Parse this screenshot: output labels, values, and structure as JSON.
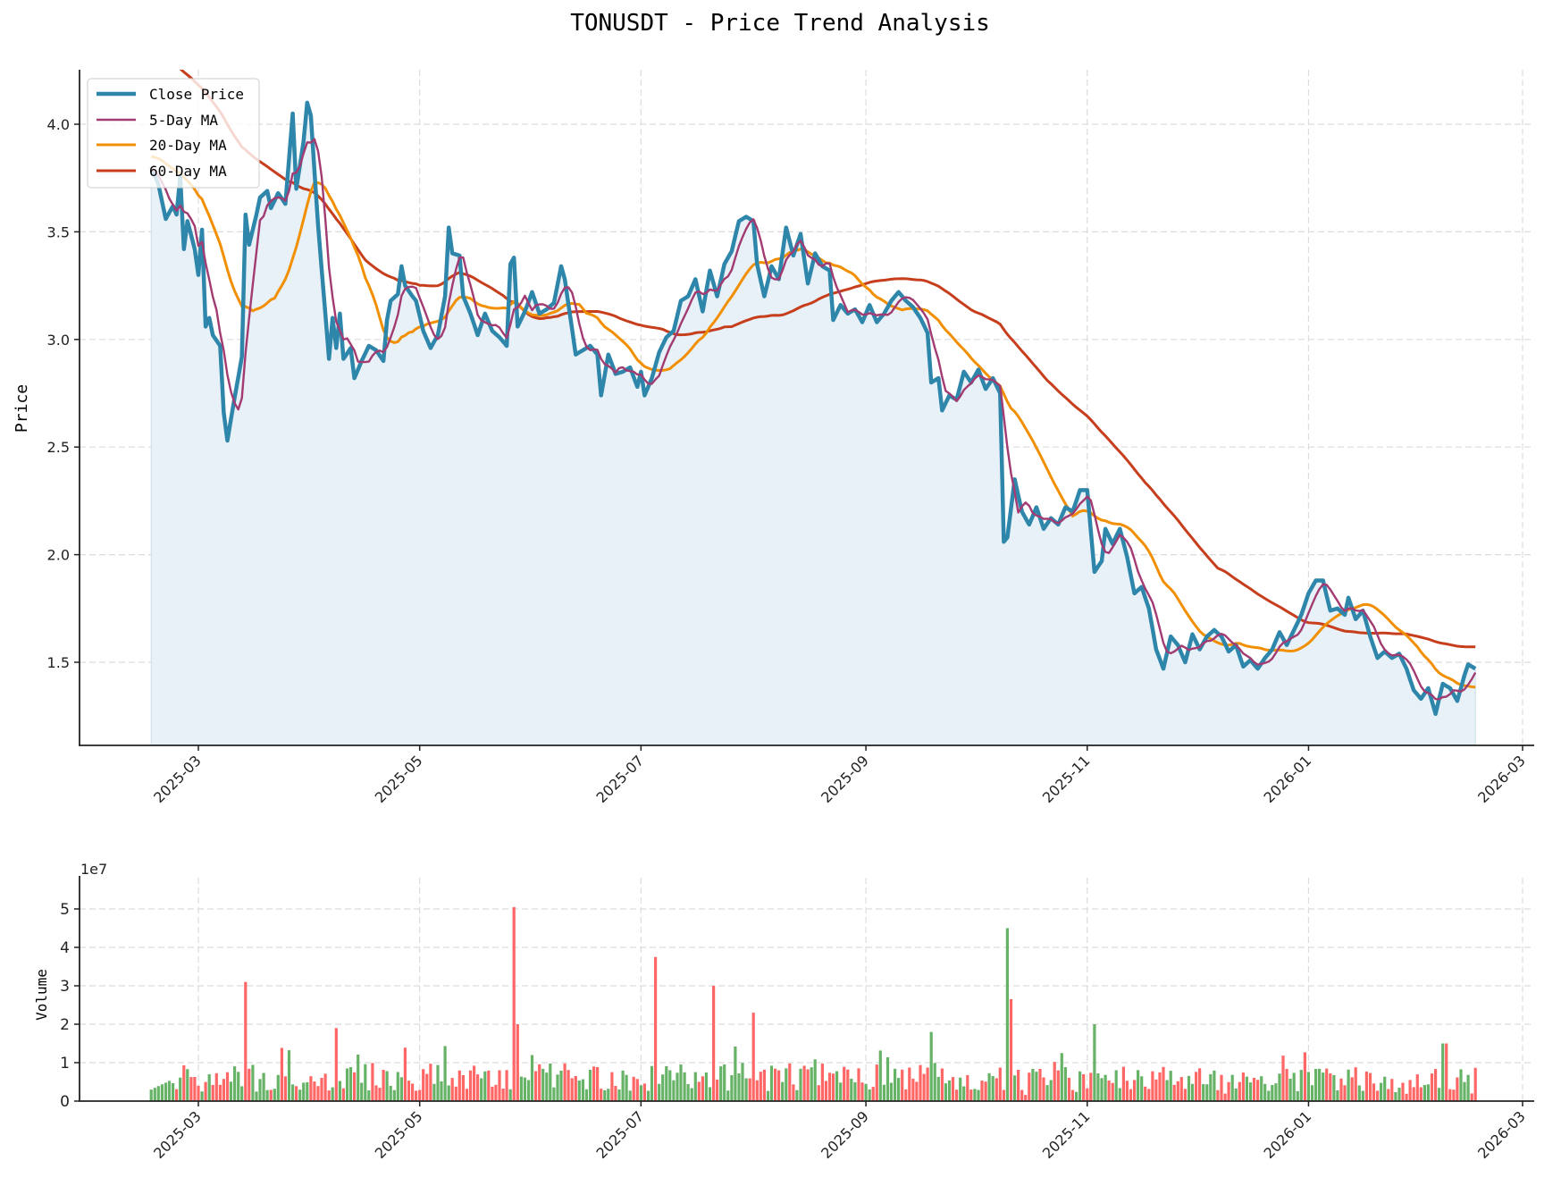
{
  "chart_data": [
    {
      "type": "line",
      "title": "TONUSDT - Price Trend Analysis",
      "xlabel": "",
      "ylabel": "Price",
      "ylim": [
        1.11,
        4.25
      ],
      "yticks": [
        "1.5",
        "2.0",
        "2.5",
        "3.0",
        "3.5",
        "4.0"
      ],
      "xticks": [
        "2025-03",
        "2025-05",
        "2025-07",
        "2025-09",
        "2025-11",
        "2026-01",
        "2026-03"
      ],
      "x_range": [
        "2025-02-16",
        "2026-02-16"
      ],
      "grid": true,
      "legend_position": "upper left",
      "legend": [
        "Close Price",
        "5-Day MA",
        "20-Day MA",
        "60-Day MA"
      ],
      "series_colors": {
        "close": "#2e86ab",
        "ma5": "#a23b72",
        "ma20": "#f18f01",
        "ma60": "#c73e1d",
        "fill": "#e8f1f7"
      },
      "close_keypoints": [
        [
          "2025-02-16",
          3.8
        ],
        [
          "2025-02-18",
          3.72
        ],
        [
          "2025-02-20",
          3.56
        ],
        [
          "2025-02-22",
          3.62
        ],
        [
          "2025-02-23",
          3.58
        ],
        [
          "2025-02-24",
          3.76
        ],
        [
          "2025-02-25",
          3.42
        ],
        [
          "2025-02-26",
          3.55
        ],
        [
          "2025-02-28",
          3.42
        ],
        [
          "2025-03-01",
          3.3
        ],
        [
          "2025-03-02",
          3.51
        ],
        [
          "2025-03-03",
          3.06
        ],
        [
          "2025-03-04",
          3.1
        ],
        [
          "2025-03-05",
          3.02
        ],
        [
          "2025-03-07",
          2.97
        ],
        [
          "2025-03-08",
          2.66
        ],
        [
          "2025-03-09",
          2.53
        ],
        [
          "2025-03-11",
          2.73
        ],
        [
          "2025-03-13",
          2.92
        ],
        [
          "2025-03-14",
          3.58
        ],
        [
          "2025-03-15",
          3.44
        ],
        [
          "2025-03-17",
          3.58
        ],
        [
          "2025-03-18",
          3.66
        ],
        [
          "2025-03-20",
          3.69
        ],
        [
          "2025-03-21",
          3.61
        ],
        [
          "2025-03-23",
          3.68
        ],
        [
          "2025-03-25",
          3.63
        ],
        [
          "2025-03-27",
          4.05
        ],
        [
          "2025-03-28",
          3.7
        ],
        [
          "2025-03-30",
          3.92
        ],
        [
          "2025-03-31",
          4.1
        ],
        [
          "2025-04-01",
          4.04
        ],
        [
          "2025-04-03",
          3.53
        ],
        [
          "2025-04-05",
          3.12
        ],
        [
          "2025-04-06",
          2.91
        ],
        [
          "2025-04-07",
          3.1
        ],
        [
          "2025-04-08",
          2.96
        ],
        [
          "2025-04-09",
          3.12
        ],
        [
          "2025-04-10",
          2.91
        ],
        [
          "2025-04-12",
          2.96
        ],
        [
          "2025-04-13",
          2.82
        ],
        [
          "2025-04-15",
          2.9
        ],
        [
          "2025-04-17",
          2.97
        ],
        [
          "2025-04-19",
          2.95
        ],
        [
          "2025-04-21",
          2.9
        ],
        [
          "2025-04-22",
          3.09
        ],
        [
          "2025-04-23",
          3.18
        ],
        [
          "2025-04-25",
          3.21
        ],
        [
          "2025-04-26",
          3.34
        ],
        [
          "2025-04-27",
          3.25
        ],
        [
          "2025-04-29",
          3.2
        ],
        [
          "2025-04-30",
          3.18
        ],
        [
          "2025-05-02",
          3.04
        ],
        [
          "2025-05-04",
          2.96
        ],
        [
          "2025-05-06",
          3.02
        ],
        [
          "2025-05-08",
          3.2
        ],
        [
          "2025-05-09",
          3.52
        ],
        [
          "2025-05-10",
          3.4
        ],
        [
          "2025-05-12",
          3.39
        ],
        [
          "2025-05-13",
          3.2
        ],
        [
          "2025-05-15",
          3.12
        ],
        [
          "2025-05-17",
          3.02
        ],
        [
          "2025-05-19",
          3.12
        ],
        [
          "2025-05-21",
          3.04
        ],
        [
          "2025-05-23",
          3.01
        ],
        [
          "2025-05-25",
          2.97
        ],
        [
          "2025-05-26",
          3.35
        ],
        [
          "2025-05-27",
          3.38
        ],
        [
          "2025-05-28",
          3.06
        ],
        [
          "2025-05-30",
          3.13
        ],
        [
          "2025-06-01",
          3.22
        ],
        [
          "2025-06-03",
          3.12
        ],
        [
          "2025-06-05",
          3.14
        ],
        [
          "2025-06-07",
          3.17
        ],
        [
          "2025-06-09",
          3.34
        ],
        [
          "2025-06-10",
          3.28
        ],
        [
          "2025-06-12",
          3.05
        ],
        [
          "2025-06-13",
          2.93
        ],
        [
          "2025-06-15",
          2.95
        ],
        [
          "2025-06-17",
          2.97
        ],
        [
          "2025-06-19",
          2.93
        ],
        [
          "2025-06-20",
          2.74
        ],
        [
          "2025-06-22",
          2.93
        ],
        [
          "2025-06-24",
          2.84
        ],
        [
          "2025-06-26",
          2.85
        ],
        [
          "2025-06-28",
          2.87
        ],
        [
          "2025-06-30",
          2.78
        ],
        [
          "2025-07-01",
          2.85
        ],
        [
          "2025-07-02",
          2.74
        ],
        [
          "2025-07-04",
          2.82
        ],
        [
          "2025-07-06",
          2.94
        ],
        [
          "2025-07-08",
          3.01
        ],
        [
          "2025-07-10",
          3.04
        ],
        [
          "2025-07-12",
          3.18
        ],
        [
          "2025-07-14",
          3.2
        ],
        [
          "2025-07-16",
          3.28
        ],
        [
          "2025-07-18",
          3.13
        ],
        [
          "2025-07-20",
          3.32
        ],
        [
          "2025-07-22",
          3.2
        ],
        [
          "2025-07-24",
          3.35
        ],
        [
          "2025-07-26",
          3.41
        ],
        [
          "2025-07-28",
          3.55
        ],
        [
          "2025-07-30",
          3.57
        ],
        [
          "2025-08-01",
          3.55
        ],
        [
          "2025-08-02",
          3.35
        ],
        [
          "2025-08-04",
          3.2
        ],
        [
          "2025-08-06",
          3.34
        ],
        [
          "2025-08-08",
          3.28
        ],
        [
          "2025-08-10",
          3.52
        ],
        [
          "2025-08-12",
          3.39
        ],
        [
          "2025-08-14",
          3.49
        ],
        [
          "2025-08-16",
          3.26
        ],
        [
          "2025-08-18",
          3.4
        ],
        [
          "2025-08-20",
          3.34
        ],
        [
          "2025-08-22",
          3.32
        ],
        [
          "2025-08-23",
          3.09
        ],
        [
          "2025-08-25",
          3.16
        ],
        [
          "2025-08-27",
          3.12
        ],
        [
          "2025-08-29",
          3.14
        ],
        [
          "2025-08-31",
          3.08
        ],
        [
          "2025-09-02",
          3.16
        ],
        [
          "2025-09-04",
          3.08
        ],
        [
          "2025-09-06",
          3.12
        ],
        [
          "2025-09-08",
          3.18
        ],
        [
          "2025-09-10",
          3.22
        ],
        [
          "2025-09-12",
          3.18
        ],
        [
          "2025-09-14",
          3.15
        ],
        [
          "2025-09-16",
          3.1
        ],
        [
          "2025-09-18",
          3.03
        ],
        [
          "2025-09-19",
          2.8
        ],
        [
          "2025-09-21",
          2.82
        ],
        [
          "2025-09-22",
          2.67
        ],
        [
          "2025-09-24",
          2.74
        ],
        [
          "2025-09-26",
          2.72
        ],
        [
          "2025-09-28",
          2.85
        ],
        [
          "2025-09-30",
          2.8
        ],
        [
          "2025-10-02",
          2.86
        ],
        [
          "2025-10-04",
          2.77
        ],
        [
          "2025-10-06",
          2.82
        ],
        [
          "2025-10-08",
          2.75
        ],
        [
          "2025-10-09",
          2.06
        ],
        [
          "2025-10-10",
          2.08
        ],
        [
          "2025-10-12",
          2.35
        ],
        [
          "2025-10-14",
          2.2
        ],
        [
          "2025-10-16",
          2.14
        ],
        [
          "2025-10-18",
          2.22
        ],
        [
          "2025-10-20",
          2.12
        ],
        [
          "2025-10-22",
          2.17
        ],
        [
          "2025-10-24",
          2.14
        ],
        [
          "2025-10-26",
          2.22
        ],
        [
          "2025-10-28",
          2.2
        ],
        [
          "2025-10-30",
          2.3
        ],
        [
          "2025-11-01",
          2.3
        ],
        [
          "2025-11-03",
          1.92
        ],
        [
          "2025-11-05",
          1.97
        ],
        [
          "2025-11-06",
          2.12
        ],
        [
          "2025-11-08",
          2.05
        ],
        [
          "2025-11-10",
          2.12
        ],
        [
          "2025-11-12",
          1.99
        ],
        [
          "2025-11-14",
          1.82
        ],
        [
          "2025-11-16",
          1.85
        ],
        [
          "2025-11-18",
          1.75
        ],
        [
          "2025-11-20",
          1.56
        ],
        [
          "2025-11-22",
          1.47
        ],
        [
          "2025-11-24",
          1.62
        ],
        [
          "2025-11-26",
          1.58
        ],
        [
          "2025-11-28",
          1.5
        ],
        [
          "2025-11-30",
          1.63
        ],
        [
          "2025-12-02",
          1.56
        ],
        [
          "2025-12-04",
          1.62
        ],
        [
          "2025-12-06",
          1.65
        ],
        [
          "2025-12-08",
          1.62
        ],
        [
          "2025-12-10",
          1.55
        ],
        [
          "2025-12-12",
          1.58
        ],
        [
          "2025-12-14",
          1.48
        ],
        [
          "2025-12-16",
          1.51
        ],
        [
          "2025-12-18",
          1.47
        ],
        [
          "2025-12-20",
          1.52
        ],
        [
          "2025-12-22",
          1.56
        ],
        [
          "2025-12-24",
          1.64
        ],
        [
          "2025-12-26",
          1.58
        ],
        [
          "2025-12-28",
          1.65
        ],
        [
          "2025-12-30",
          1.72
        ],
        [
          "2026-01-01",
          1.82
        ],
        [
          "2026-01-03",
          1.88
        ],
        [
          "2026-01-05",
          1.88
        ],
        [
          "2026-01-07",
          1.74
        ],
        [
          "2026-01-09",
          1.75
        ],
        [
          "2026-01-11",
          1.72
        ],
        [
          "2026-01-12",
          1.8
        ],
        [
          "2026-01-14",
          1.7
        ],
        [
          "2026-01-16",
          1.74
        ],
        [
          "2026-01-18",
          1.62
        ],
        [
          "2026-01-20",
          1.52
        ],
        [
          "2026-01-22",
          1.55
        ],
        [
          "2026-01-24",
          1.52
        ],
        [
          "2026-01-26",
          1.54
        ],
        [
          "2026-01-28",
          1.47
        ],
        [
          "2026-01-30",
          1.37
        ],
        [
          "2026-02-01",
          1.33
        ],
        [
          "2026-02-03",
          1.38
        ],
        [
          "2026-02-05",
          1.26
        ],
        [
          "2026-02-07",
          1.4
        ],
        [
          "2026-02-09",
          1.38
        ],
        [
          "2026-02-11",
          1.32
        ],
        [
          "2026-02-13",
          1.44
        ],
        [
          "2026-02-14",
          1.49
        ],
        [
          "2026-02-16",
          1.47
        ]
      ],
      "ma60_start": 4.35
    },
    {
      "type": "bar",
      "title": "",
      "xlabel": "",
      "ylabel": "Volume",
      "offset_label": "1e7",
      "ylim": [
        0,
        5.3
      ],
      "yticks": [
        "0",
        "1",
        "2",
        "3",
        "4",
        "5"
      ],
      "xticks": [
        "2025-03",
        "2025-05",
        "2025-07",
        "2025-09",
        "2025-11",
        "2026-01",
        "2026-03"
      ],
      "colors": {
        "up": "#66b266",
        "down": "#ff6666"
      },
      "volume_spikes_1e7": [
        [
          "2025-03-14",
          3.1,
          "down"
        ],
        [
          "2025-04-08",
          1.9,
          "down"
        ],
        [
          "2025-05-27",
          5.05,
          "down"
        ],
        [
          "2025-05-28",
          2.0,
          "down"
        ],
        [
          "2025-07-05",
          3.75,
          "down"
        ],
        [
          "2025-07-21",
          3.0,
          "down"
        ],
        [
          "2025-08-01",
          2.3,
          "down"
        ],
        [
          "2025-09-19",
          1.8,
          "up"
        ],
        [
          "2025-10-10",
          4.5,
          "up"
        ],
        [
          "2025-10-11",
          2.65,
          "down"
        ],
        [
          "2025-11-03",
          2.0,
          "up"
        ],
        [
          "2026-02-07",
          1.5,
          "up"
        ],
        [
          "2026-02-08",
          1.5,
          "down"
        ],
        [
          "2025-12-31",
          1.27,
          "down"
        ]
      ]
    }
  ]
}
